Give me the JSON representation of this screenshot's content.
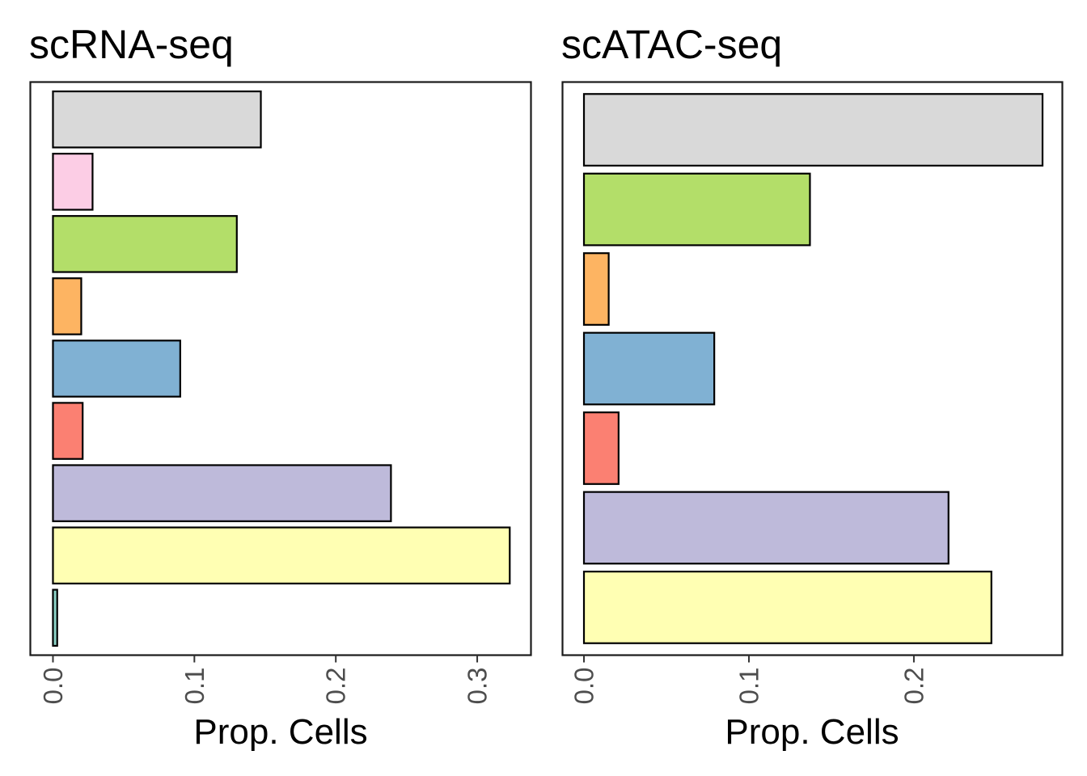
{
  "chart_data": [
    {
      "type": "bar",
      "orientation": "horizontal",
      "title": "scRNA-seq",
      "xlabel": "Prop. Cells",
      "ylabel": "",
      "xlim": [
        -0.016,
        0.338
      ],
      "xticks": [
        0.0,
        0.1,
        0.2,
        0.3
      ],
      "xtick_labels": [
        "0.0",
        "0.1",
        "0.2",
        "0.3"
      ],
      "categories_top_to_bottom": 9,
      "values": [
        0.147,
        0.028,
        0.13,
        0.02,
        0.09,
        0.021,
        0.239,
        0.323,
        0.003
      ],
      "colors": [
        "#D9D9D9",
        "#FCCDE5",
        "#B3DE69",
        "#FDB462",
        "#80B1D3",
        "#FB8072",
        "#BEBADA",
        "#FFFFB3",
        "#8DD3C7"
      ],
      "grid": false,
      "legend": "none"
    },
    {
      "type": "bar",
      "orientation": "horizontal",
      "title": "scATAC-seq",
      "xlabel": "Prop. Cells",
      "ylabel": "",
      "xlim": [
        -0.013,
        0.29
      ],
      "xticks": [
        0.0,
        0.1,
        0.2
      ],
      "xtick_labels": [
        "0.0",
        "0.1",
        "0.2"
      ],
      "categories_top_to_bottom": 7,
      "values": [
        0.278,
        0.137,
        0.015,
        0.079,
        0.021,
        0.221,
        0.247
      ],
      "colors": [
        "#D9D9D9",
        "#B3DE69",
        "#FDB462",
        "#80B1D3",
        "#FB8072",
        "#BEBADA",
        "#FFFFB3"
      ],
      "grid": false,
      "legend": "none"
    }
  ]
}
